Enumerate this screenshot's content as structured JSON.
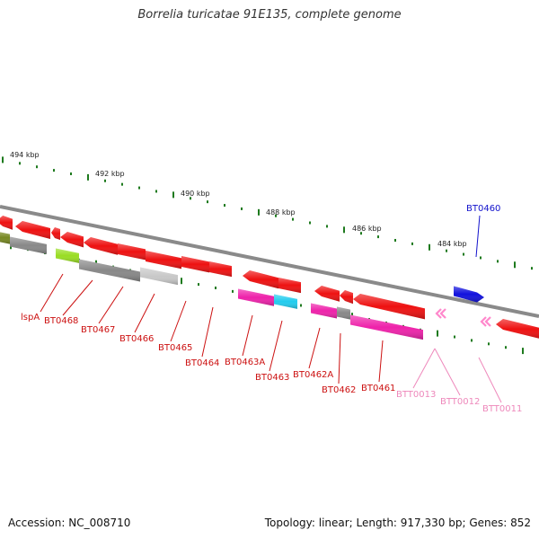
{
  "title": "Borrelia turicatae 91E135, complete genome",
  "footer": {
    "accession": "Accession: NC_008710",
    "summary": "Topology: linear; Length: 917,330 bp; Genes: 852"
  },
  "ruler": {
    "labels": [
      "494 kbp",
      "492 kbp",
      "490 kbp",
      "488 kbp",
      "486 kbp",
      "484 kbp"
    ],
    "tick_color": "#1e7a1e"
  },
  "colors": {
    "red": "#ee1111",
    "magenta": "#ee22aa",
    "pink": "#ff88cc",
    "cyan": "#22ccee",
    "blue": "#1111dd",
    "gray": "#888888",
    "lightgray": "#c8c8c8",
    "yellowgreen": "#99dd22",
    "olive": "#778822",
    "label_red": "#cc1111",
    "label_blue": "#1111cc",
    "label_pink": "#ee88bb"
  },
  "genes": [
    {
      "name": "lspA",
      "color": "label_red"
    },
    {
      "name": "BT0468",
      "color": "label_red"
    },
    {
      "name": "BT0467",
      "color": "label_red"
    },
    {
      "name": "BT0466",
      "color": "label_red"
    },
    {
      "name": "BT0465",
      "color": "label_red"
    },
    {
      "name": "BT0464",
      "color": "label_red"
    },
    {
      "name": "BT0463A",
      "color": "label_red"
    },
    {
      "name": "BT0463",
      "color": "label_red"
    },
    {
      "name": "BT0462A",
      "color": "label_red"
    },
    {
      "name": "BT0462",
      "color": "label_red"
    },
    {
      "name": "BT0461",
      "color": "label_red"
    },
    {
      "name": "BTT0013",
      "color": "label_pink"
    },
    {
      "name": "BTT0012",
      "color": "label_pink"
    },
    {
      "name": "BTT0011",
      "color": "label_pink"
    },
    {
      "name": "BT0460",
      "color": "label_blue"
    }
  ]
}
